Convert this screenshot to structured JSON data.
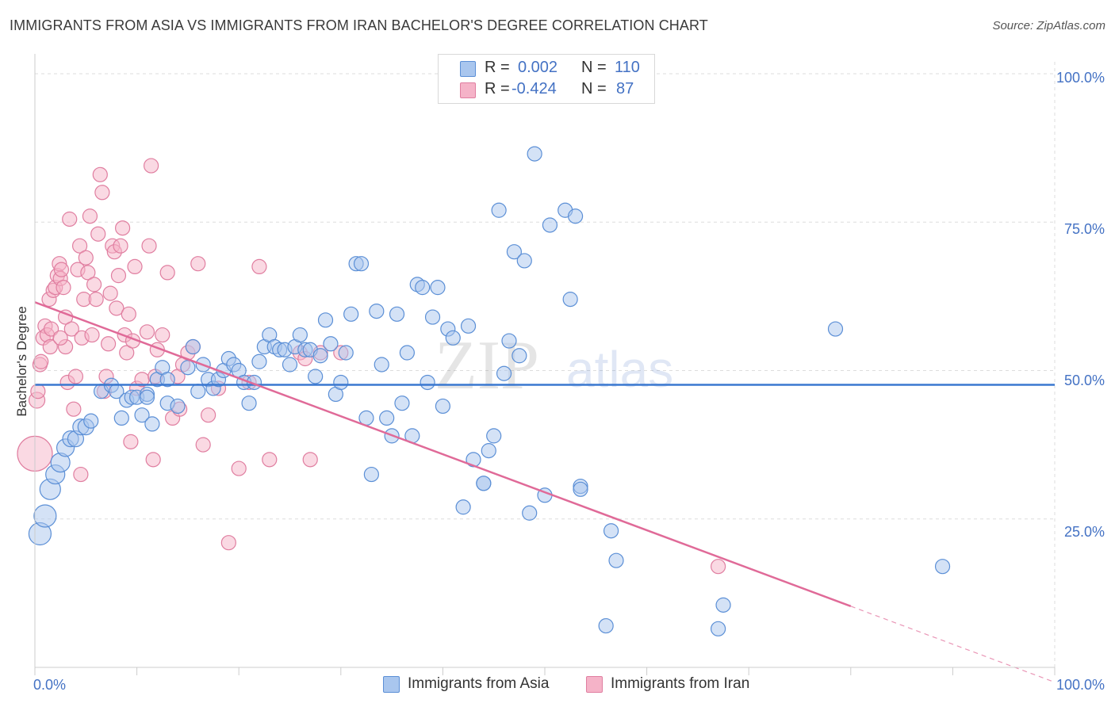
{
  "header": {
    "title": "IMMIGRANTS FROM ASIA VS IMMIGRANTS FROM IRAN BACHELOR'S DEGREE CORRELATION CHART",
    "source": "Source: ZipAtlas.com"
  },
  "watermark": {
    "zip": "ZIP",
    "atlas": "atlas"
  },
  "legend": {
    "asia": {
      "r_label": "R =",
      "r_value": "0.002",
      "n_label": "N =",
      "n_value": "110"
    },
    "iran": {
      "r_label": "R =",
      "r_value": "-0.424",
      "n_label": "N =",
      "n_value": "87"
    }
  },
  "bottom_legend": {
    "asia": "Immigrants from Asia",
    "iran": "Immigrants from Iran"
  },
  "colors": {
    "asia_fill": "#a9c6ee",
    "asia_stroke": "#5b8fd6",
    "asia_line": "#3a78d0",
    "iran_fill": "#f5b3c8",
    "iran_stroke": "#e07ea0",
    "iran_line": "#e06a98",
    "tick_text": "#4472c4",
    "grid": "#dddddd"
  },
  "chart_data": {
    "type": "scatter",
    "ylabel": "Bachelor's Degree",
    "x_tick_labels": [
      "0.0%",
      "100.0%"
    ],
    "y_tick_labels": [
      "100.0%",
      "75.0%",
      "50.0%",
      "25.0%"
    ],
    "xlim": [
      0,
      100
    ],
    "ylim": [
      0,
      102
    ],
    "grid": true,
    "series": [
      {
        "name": "Immigrants from Asia",
        "points": [
          [
            0.5,
            22.5,
            14
          ],
          [
            1,
            25.5,
            14
          ],
          [
            1.5,
            30,
            13
          ],
          [
            2,
            32.5,
            12
          ],
          [
            2.5,
            34.5,
            12
          ],
          [
            3,
            37,
            11
          ],
          [
            3.5,
            38.5,
            10
          ],
          [
            4,
            38.5,
            10
          ],
          [
            4.5,
            40.5,
            10
          ],
          [
            5,
            40.5,
            10
          ],
          [
            5.5,
            41.5,
            9
          ],
          [
            6.5,
            46.5,
            9
          ],
          [
            7.5,
            47.5,
            9
          ],
          [
            8,
            46.5,
            9
          ],
          [
            8.5,
            42,
            9
          ],
          [
            9,
            45,
            9
          ],
          [
            9.5,
            45.5,
            9
          ],
          [
            10,
            45.5,
            9
          ],
          [
            10.5,
            42.5,
            9
          ],
          [
            11,
            46,
            9
          ],
          [
            11,
            45.5,
            9
          ],
          [
            11.5,
            41,
            9
          ],
          [
            12,
            48.5,
            9
          ],
          [
            12.5,
            50.5,
            9
          ],
          [
            13,
            48.5,
            9
          ],
          [
            13,
            44.5,
            9
          ],
          [
            14,
            44,
            9
          ],
          [
            15,
            50.5,
            9
          ],
          [
            15.5,
            54,
            9
          ],
          [
            16,
            46.5,
            9
          ],
          [
            16.5,
            51,
            9
          ],
          [
            17,
            48.5,
            9
          ],
          [
            17.5,
            47,
            9
          ],
          [
            18,
            48.5,
            9
          ],
          [
            18.5,
            50,
            9
          ],
          [
            19,
            52,
            9
          ],
          [
            19.5,
            51,
            9
          ],
          [
            20,
            50,
            9
          ],
          [
            20.5,
            48,
            9
          ],
          [
            21,
            44.5,
            9
          ],
          [
            21.5,
            48,
            9
          ],
          [
            22,
            51.5,
            9
          ],
          [
            22.5,
            54,
            9
          ],
          [
            23,
            56,
            9
          ],
          [
            23.5,
            54,
            9
          ],
          [
            24,
            53.5,
            9
          ],
          [
            24.5,
            53.5,
            9
          ],
          [
            25,
            51,
            9
          ],
          [
            25.5,
            54,
            9
          ],
          [
            26,
            56,
            9
          ],
          [
            26.5,
            53.5,
            9
          ],
          [
            27,
            53.5,
            9
          ],
          [
            27.5,
            49,
            9
          ],
          [
            28,
            52.5,
            9
          ],
          [
            28.5,
            58.5,
            9
          ],
          [
            29,
            54.5,
            9
          ],
          [
            29.5,
            46,
            9
          ],
          [
            30,
            48,
            9
          ],
          [
            30.5,
            53,
            9
          ],
          [
            31,
            59.5,
            9
          ],
          [
            31.5,
            68,
            9
          ],
          [
            32,
            68,
            9
          ],
          [
            32.5,
            42,
            9
          ],
          [
            33,
            32.5,
            9
          ],
          [
            33.5,
            60,
            9
          ],
          [
            34,
            51,
            9
          ],
          [
            34.5,
            42,
            9
          ],
          [
            35,
            39,
            9
          ],
          [
            35.5,
            59.5,
            9
          ],
          [
            36,
            44.5,
            9
          ],
          [
            36.5,
            53,
            9
          ],
          [
            37,
            39,
            9
          ],
          [
            37.5,
            64.5,
            9
          ],
          [
            38,
            64,
            9
          ],
          [
            38.5,
            48,
            9
          ],
          [
            39,
            59,
            9
          ],
          [
            39.5,
            64,
            9
          ],
          [
            40,
            44,
            9
          ],
          [
            40.5,
            57,
            9
          ],
          [
            41,
            55.5,
            9
          ],
          [
            42,
            27,
            9
          ],
          [
            42.5,
            57.5,
            9
          ],
          [
            43,
            35,
            9
          ],
          [
            44,
            31,
            9
          ],
          [
            44.5,
            36.5,
            9
          ],
          [
            45,
            39,
            9
          ],
          [
            45.5,
            77,
            9
          ],
          [
            46,
            49.5,
            9
          ],
          [
            46.5,
            55,
            9
          ],
          [
            47,
            70,
            9
          ],
          [
            47.5,
            52.5,
            9
          ],
          [
            48,
            68.5,
            9
          ],
          [
            48.5,
            26,
            9
          ],
          [
            49,
            86.5,
            9
          ],
          [
            50,
            29,
            9
          ],
          [
            50.5,
            74.5,
            9
          ],
          [
            52,
            77,
            9
          ],
          [
            52.5,
            62,
            9
          ],
          [
            53,
            76,
            9
          ],
          [
            53.5,
            30.5,
            9
          ],
          [
            56,
            7,
            9
          ],
          [
            56.5,
            23,
            9
          ],
          [
            57,
            18,
            9
          ],
          [
            67,
            6.5,
            9
          ],
          [
            67.5,
            10.5,
            9
          ],
          [
            78.5,
            57,
            9
          ],
          [
            89,
            17,
            9
          ],
          [
            53.5,
            30,
            9
          ],
          [
            44,
            31,
            9
          ],
          [
            55,
            45,
            0
          ]
        ]
      },
      {
        "name": "Immigrants from Iran",
        "points": [
          [
            0,
            36,
            22
          ],
          [
            0.2,
            45,
            10
          ],
          [
            0.3,
            46.5,
            9
          ],
          [
            0.5,
            51,
            9
          ],
          [
            0.6,
            51.5,
            9
          ],
          [
            0.8,
            55.5,
            9
          ],
          [
            1,
            57.5,
            9
          ],
          [
            1.2,
            56,
            9
          ],
          [
            1.4,
            62,
            9
          ],
          [
            1.5,
            54,
            9
          ],
          [
            1.6,
            57,
            9
          ],
          [
            1.8,
            63.5,
            9
          ],
          [
            2,
            64,
            9
          ],
          [
            2.2,
            66,
            9
          ],
          [
            2.4,
            68,
            9
          ],
          [
            2.5,
            65.5,
            9
          ],
          [
            2.6,
            67,
            9
          ],
          [
            2.8,
            64,
            9
          ],
          [
            3,
            54,
            9
          ],
          [
            3,
            59,
            9
          ],
          [
            3.2,
            48,
            9
          ],
          [
            3.4,
            75.5,
            9
          ],
          [
            3.6,
            57,
            9
          ],
          [
            3.8,
            43.5,
            9
          ],
          [
            4,
            49,
            9
          ],
          [
            4.2,
            67,
            9
          ],
          [
            4.4,
            71,
            9
          ],
          [
            4.6,
            55.5,
            9
          ],
          [
            4.8,
            62,
            9
          ],
          [
            5,
            69,
            9
          ],
          [
            5.2,
            66.5,
            9
          ],
          [
            5.4,
            76,
            9
          ],
          [
            5.6,
            56,
            9
          ],
          [
            5.8,
            64.5,
            9
          ],
          [
            6,
            62,
            9
          ],
          [
            6.2,
            73,
            9
          ],
          [
            6.4,
            83,
            9
          ],
          [
            6.6,
            80,
            9
          ],
          [
            6.8,
            46.5,
            9
          ],
          [
            7,
            49,
            9
          ],
          [
            7.2,
            54.5,
            9
          ],
          [
            7.4,
            63,
            9
          ],
          [
            7.6,
            71,
            9
          ],
          [
            7.8,
            70,
            9
          ],
          [
            8,
            60.5,
            9
          ],
          [
            8.2,
            66,
            9
          ],
          [
            8.4,
            71,
            9
          ],
          [
            8.6,
            74,
            9
          ],
          [
            8.8,
            56,
            9
          ],
          [
            9,
            53,
            9
          ],
          [
            9.2,
            59.5,
            9
          ],
          [
            9.4,
            38,
            9
          ],
          [
            9.6,
            55,
            9
          ],
          [
            9.8,
            67.5,
            9
          ],
          [
            10,
            47,
            9
          ],
          [
            10.5,
            48.5,
            9
          ],
          [
            11,
            56.5,
            9
          ],
          [
            11.2,
            71,
            9
          ],
          [
            11.4,
            84.5,
            9
          ],
          [
            11.6,
            35,
            9
          ],
          [
            11.8,
            49,
            9
          ],
          [
            12,
            53.5,
            9
          ],
          [
            12.5,
            56,
            9
          ],
          [
            13,
            66.5,
            9
          ],
          [
            13.5,
            42,
            9
          ],
          [
            14,
            49,
            9
          ],
          [
            14.2,
            43.5,
            9
          ],
          [
            14.5,
            51,
            9
          ],
          [
            15,
            53,
            9
          ],
          [
            15.5,
            54,
            9
          ],
          [
            16,
            68,
            9
          ],
          [
            16.5,
            37.5,
            9
          ],
          [
            17,
            42.5,
            9
          ],
          [
            18,
            47,
            9
          ],
          [
            19,
            21,
            9
          ],
          [
            20,
            33.5,
            9
          ],
          [
            21,
            48,
            9
          ],
          [
            22,
            67.5,
            9
          ],
          [
            23,
            35,
            9
          ],
          [
            26,
            53,
            9
          ],
          [
            26.5,
            52,
            9
          ],
          [
            27,
            35,
            9
          ],
          [
            28,
            53,
            9
          ],
          [
            30,
            53,
            9
          ],
          [
            67,
            17,
            9
          ],
          [
            2.5,
            55.5,
            9
          ],
          [
            4.5,
            32.5,
            9
          ]
        ]
      }
    ],
    "trend_lines": [
      {
        "series": "Immigrants from Asia",
        "x": [
          0,
          100
        ],
        "y": [
          47.6,
          47.6
        ]
      },
      {
        "series": "Immigrants from Iran",
        "x": [
          0,
          80
        ],
        "y": [
          61.5,
          10.3
        ],
        "dashed_x": [
          80,
          100
        ],
        "dashed_y": [
          10.3,
          -2.5
        ]
      }
    ]
  }
}
